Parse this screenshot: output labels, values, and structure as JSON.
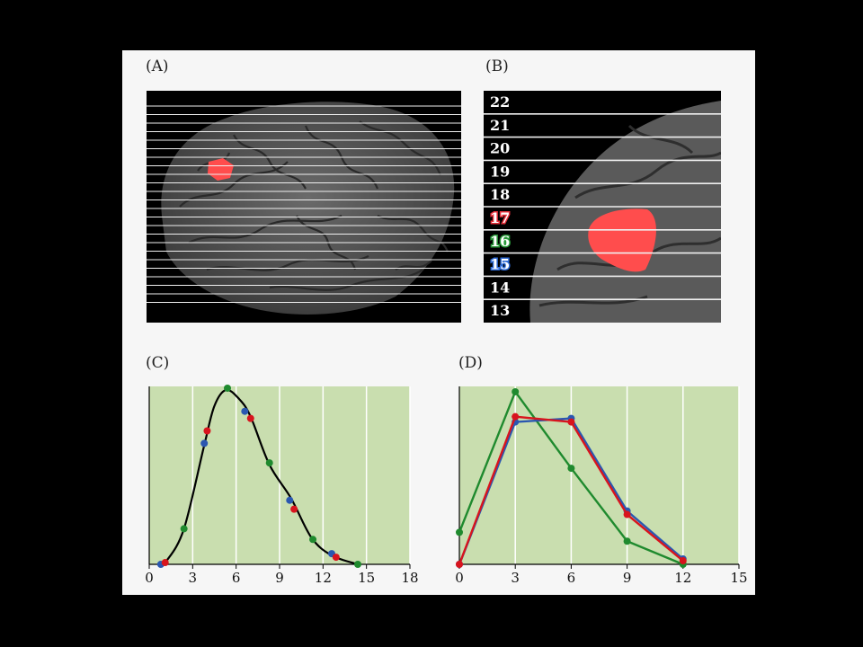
{
  "panels": {
    "A": {
      "label": "(A)"
    },
    "B": {
      "label": "(B)",
      "slices": [
        "22",
        "21",
        "20",
        "19",
        "18",
        "17",
        "16",
        "15",
        "14",
        "13"
      ]
    },
    "C": {
      "label": "(C)"
    },
    "D": {
      "label": "(D)"
    }
  },
  "colors": {
    "background": "#000000",
    "panel": "#f6f6f6",
    "plot_bg": "#c9deaf",
    "red": "#d8141d",
    "green": "#1f8a2e",
    "blue": "#2a57b0",
    "curve": "#000000",
    "highlight": "#ff4d4d",
    "slice17": "#e8303a",
    "slice16": "#2a9a3a",
    "slice15": "#2e6bd6"
  },
  "chart_data": [
    {
      "panel": "C",
      "type": "scatter",
      "xlim": [
        0,
        18
      ],
      "ylim": [
        0,
        1
      ],
      "x_ticks": [
        "0",
        "3",
        "6",
        "9",
        "12",
        "15",
        "18"
      ],
      "grid": true,
      "curve": {
        "x": [
          0.7,
          1.2,
          2.4,
          3.8,
          4.5,
          5.3,
          6.2,
          7.0,
          8.3,
          9.8,
          11.2,
          12.6,
          14.4
        ],
        "y": [
          0.0,
          0.02,
          0.2,
          0.67,
          0.89,
          0.98,
          0.93,
          0.83,
          0.56,
          0.37,
          0.15,
          0.05,
          0.0
        ]
      },
      "series": [
        {
          "color": "blue",
          "x": [
            0.8,
            3.8,
            6.6,
            9.7,
            12.6
          ],
          "y": [
            0.0,
            0.68,
            0.86,
            0.36,
            0.06
          ]
        },
        {
          "color": "red",
          "x": [
            1.1,
            4.0,
            7.0,
            10.0,
            12.9
          ],
          "y": [
            0.01,
            0.75,
            0.82,
            0.31,
            0.04
          ]
        },
        {
          "color": "green",
          "x": [
            2.4,
            5.4,
            8.3,
            11.3,
            14.4
          ],
          "y": [
            0.2,
            0.99,
            0.57,
            0.14,
            0.0
          ]
        }
      ]
    },
    {
      "panel": "D",
      "type": "line",
      "xlim": [
        0,
        15
      ],
      "ylim": [
        0,
        1
      ],
      "x_ticks": [
        "0",
        "3",
        "6",
        "9",
        "12",
        "15"
      ],
      "grid": true,
      "series": [
        {
          "color": "green",
          "x": [
            0,
            3,
            6,
            9,
            12
          ],
          "y": [
            0.18,
            0.97,
            0.54,
            0.13,
            0.0
          ]
        },
        {
          "color": "blue",
          "x": [
            0,
            3,
            6,
            9,
            12
          ],
          "y": [
            0.0,
            0.8,
            0.82,
            0.3,
            0.03
          ]
        },
        {
          "color": "red",
          "x": [
            0,
            3,
            6,
            9,
            12
          ],
          "y": [
            0.0,
            0.83,
            0.8,
            0.28,
            0.02
          ]
        }
      ]
    }
  ]
}
